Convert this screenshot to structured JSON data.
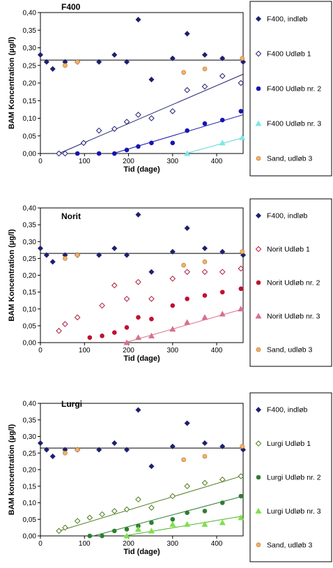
{
  "chart_data": [
    {
      "type": "scatter",
      "title": "F400",
      "xlabel": "Tid (dage)",
      "ylabel": "BAM Koncentration (µg/l)",
      "xlim": [
        0,
        460
      ],
      "ylim": [
        0,
        0.4
      ],
      "xticks": [
        0,
        100,
        200,
        300,
        400
      ],
      "yticks": [
        0,
        0.05,
        0.1,
        0.15,
        0.2,
        0.25,
        0.3,
        0.35,
        0.4
      ],
      "ytick_labels": [
        "0,00",
        "0,05",
        "0,10",
        "0,15",
        "0,20",
        "0,25",
        "0,30",
        "0,35",
        "0,40"
      ],
      "grid": false,
      "legend_position": "right",
      "series": [
        {
          "name": "F400, indløb",
          "marker": "diamond",
          "color": "#1f1f6e",
          "fill": true,
          "x": [
            0,
            14,
            28,
            56,
            84,
            133,
            168,
            196,
            222,
            252,
            300,
            333,
            373,
            413,
            460
          ],
          "y": [
            0.28,
            0.26,
            0.24,
            0.26,
            0.26,
            0.26,
            0.28,
            0.26,
            0.38,
            0.21,
            0.27,
            0.34,
            0.28,
            0.27,
            0.26
          ],
          "fit": {
            "kind": "hline",
            "y": 0.265,
            "x0": 0,
            "x1": 460
          }
        },
        {
          "name": "F400 Udløb 1",
          "marker": "diamond",
          "color": "#1f1f6e",
          "fill": false,
          "x": [
            42,
            56,
            98,
            133,
            168,
            196,
            222,
            252,
            300,
            333,
            373,
            413,
            455
          ],
          "y": [
            0,
            0,
            0.03,
            0.065,
            0.07,
            0.09,
            0.11,
            0.1,
            0.12,
            0.18,
            0.19,
            0.22,
            0.2
          ],
          "fit": {
            "kind": "line",
            "x0": 42,
            "y0": 0,
            "x1": 460,
            "y1": 0.225
          }
        },
        {
          "name": "F400 Udløb nr. 2",
          "marker": "circle",
          "color": "#1515b0",
          "fill": true,
          "x": [
            84,
            133,
            168,
            196,
            222,
            252,
            300,
            333,
            373,
            413,
            455
          ],
          "y": [
            0,
            0,
            0,
            0.01,
            0.02,
            0.03,
            0.03,
            0.065,
            0.085,
            0.095,
            0.12
          ],
          "fit": {
            "kind": "line",
            "x0": 165,
            "y0": 0,
            "x1": 460,
            "y1": 0.11
          }
        },
        {
          "name": "F400 Udløb nr. 3",
          "marker": "triangle",
          "color": "#7fe6e6",
          "fill": true,
          "x": [
            333,
            413,
            458
          ],
          "y": [
            0,
            0.03,
            0.045
          ],
          "fit": {
            "kind": "line",
            "x0": 330,
            "y0": 0,
            "x1": 460,
            "y1": 0.045
          }
        },
        {
          "name": "Sand, udløb 3",
          "marker": "circle",
          "color": "#f2b26b",
          "fill": true,
          "stroke": "#b37020",
          "x": [
            56,
            84,
            325,
            373,
            458
          ],
          "y": [
            0.25,
            0.26,
            0.23,
            0.24,
            0.27
          ]
        }
      ]
    },
    {
      "type": "scatter",
      "title": "Norit",
      "xlabel": "Tid (dage)",
      "ylabel": "BAM Koncentration (µg/l)",
      "xlim": [
        0,
        460
      ],
      "ylim": [
        0,
        0.4
      ],
      "xticks": [
        0,
        100,
        200,
        300,
        400
      ],
      "yticks": [
        0,
        0.05,
        0.1,
        0.15,
        0.2,
        0.25,
        0.3,
        0.35,
        0.4
      ],
      "ytick_labels": [
        "0,00",
        "0,05",
        "0,10",
        "0,15",
        "0,20",
        "0,25",
        "0,30",
        "0,35",
        "0,40"
      ],
      "grid": false,
      "legend_position": "right",
      "series": [
        {
          "name": "F400, indløb",
          "marker": "diamond",
          "color": "#1f1f6e",
          "fill": true,
          "x": [
            0,
            14,
            28,
            56,
            84,
            133,
            168,
            196,
            222,
            252,
            300,
            333,
            373,
            413,
            460
          ],
          "y": [
            0.28,
            0.26,
            0.24,
            0.26,
            0.26,
            0.26,
            0.28,
            0.26,
            0.38,
            0.21,
            0.27,
            0.34,
            0.28,
            0.27,
            0.26
          ],
          "fit": {
            "kind": "hline",
            "y": 0.265,
            "x0": 0,
            "x1": 460
          }
        },
        {
          "name": "Norit Udløb 1",
          "marker": "diamond",
          "color": "#b01b3a",
          "fill": false,
          "x": [
            42,
            56,
            84,
            140,
            168,
            196,
            222,
            252,
            300,
            333,
            373,
            413,
            455
          ],
          "y": [
            0.035,
            0.055,
            0.075,
            0.11,
            0.17,
            0.13,
            0.18,
            0.13,
            0.19,
            0.21,
            0.21,
            0.21,
            0.22
          ],
          "fit": {
            "kind": "log",
            "a": -0.4044,
            "b": 0.1068,
            "x0": 42,
            "x1": 460
          }
        },
        {
          "name": "Norit Udløb nr. 2",
          "marker": "circle",
          "color": "#c0102e",
          "fill": true,
          "x": [
            112,
            140,
            168,
            196,
            222,
            252,
            300,
            333,
            373,
            413,
            455
          ],
          "y": [
            0.015,
            0.02,
            0.03,
            0.045,
            0.075,
            0.07,
            0.11,
            0.13,
            0.14,
            0.15,
            0.16
          ],
          "fit": {
            "kind": "log",
            "a": -0.6894,
            "b": 0.1392,
            "x0": 130,
            "x1": 460
          }
        },
        {
          "name": "Norit Udløb nr. 3",
          "marker": "triangle",
          "color": "#d8708c",
          "fill": true,
          "x": [
            196,
            222,
            252,
            300,
            333,
            373,
            413,
            455
          ],
          "y": [
            0,
            0.015,
            0.02,
            0.04,
            0.06,
            0.075,
            0.085,
            0.1
          ],
          "fit": {
            "kind": "line",
            "x0": 192,
            "y0": 0,
            "x1": 460,
            "y1": 0.1
          }
        },
        {
          "name": "Sand, udløb 3",
          "marker": "circle",
          "color": "#f2b26b",
          "fill": true,
          "stroke": "#b37020",
          "x": [
            56,
            84,
            325,
            373,
            458
          ],
          "y": [
            0.25,
            0.26,
            0.23,
            0.24,
            0.27
          ]
        }
      ]
    },
    {
      "type": "scatter",
      "title": "Lurgi",
      "xlabel": "Tid (dage)",
      "ylabel": "BAM koncentration (µg/l)",
      "xlim": [
        0,
        460
      ],
      "ylim": [
        0,
        0.4
      ],
      "xticks": [
        0,
        100,
        200,
        300,
        400
      ],
      "yticks": [
        0,
        0.05,
        0.1,
        0.15,
        0.2,
        0.25,
        0.3,
        0.35,
        0.4
      ],
      "ytick_labels": [
        "0,00",
        "0,05",
        "0,10",
        "0,15",
        "0,20",
        "0,25",
        "0,30",
        "0,35",
        "0,40"
      ],
      "grid": false,
      "legend_position": "right",
      "series": [
        {
          "name": "F400, indløb",
          "marker": "diamond",
          "color": "#1f1f6e",
          "fill": true,
          "x": [
            0,
            14,
            28,
            56,
            84,
            133,
            168,
            196,
            222,
            252,
            300,
            333,
            373,
            413,
            460
          ],
          "y": [
            0.28,
            0.26,
            0.24,
            0.26,
            0.26,
            0.26,
            0.28,
            0.26,
            0.38,
            0.21,
            0.27,
            0.34,
            0.28,
            0.27,
            0.26
          ],
          "fit": {
            "kind": "hline",
            "y": 0.265,
            "x0": 0,
            "x1": 460
          }
        },
        {
          "name": "Lurgi Udløb 1",
          "marker": "diamond",
          "color": "#4e7a1e",
          "fill": false,
          "x": [
            42,
            56,
            84,
            112,
            140,
            168,
            196,
            222,
            252,
            300,
            333,
            373,
            413,
            455
          ],
          "y": [
            0.015,
            0.025,
            0.045,
            0.055,
            0.065,
            0.075,
            0.08,
            0.11,
            0.085,
            0.12,
            0.15,
            0.16,
            0.17,
            0.18
          ],
          "fit": {
            "kind": "line",
            "x0": 42,
            "y0": 0.015,
            "x1": 460,
            "y1": 0.182
          }
        },
        {
          "name": "Lurgi Udløb nr. 2",
          "marker": "circle",
          "color": "#2e7d32",
          "fill": true,
          "x": [
            112,
            140,
            168,
            196,
            222,
            252,
            300,
            333,
            373,
            413,
            455
          ],
          "y": [
            0,
            0,
            0.015,
            0.02,
            0.03,
            0.04,
            0.05,
            0.07,
            0.075,
            0.1,
            0.12
          ],
          "fit": {
            "kind": "line",
            "x0": 120,
            "y0": 0,
            "x1": 460,
            "y1": 0.12
          }
        },
        {
          "name": "Lurgi Udløb nr. 3",
          "marker": "triangle",
          "color": "#7ee04a",
          "fill": true,
          "x": [
            196,
            222,
            252,
            300,
            333,
            373,
            413,
            455
          ],
          "y": [
            0,
            0.02,
            0.015,
            0.035,
            0.035,
            0.035,
            0.04,
            0.055
          ],
          "fit": {
            "kind": "line",
            "x0": 190,
            "y0": 0,
            "x1": 460,
            "y1": 0.06
          }
        },
        {
          "name": "Sand, udløb 3",
          "marker": "circle",
          "color": "#f2b26b",
          "fill": true,
          "stroke": "#b37020",
          "x": [
            56,
            84,
            325,
            373,
            458
          ],
          "y": [
            0.25,
            0.26,
            0.23,
            0.24,
            0.27
          ]
        }
      ]
    }
  ]
}
